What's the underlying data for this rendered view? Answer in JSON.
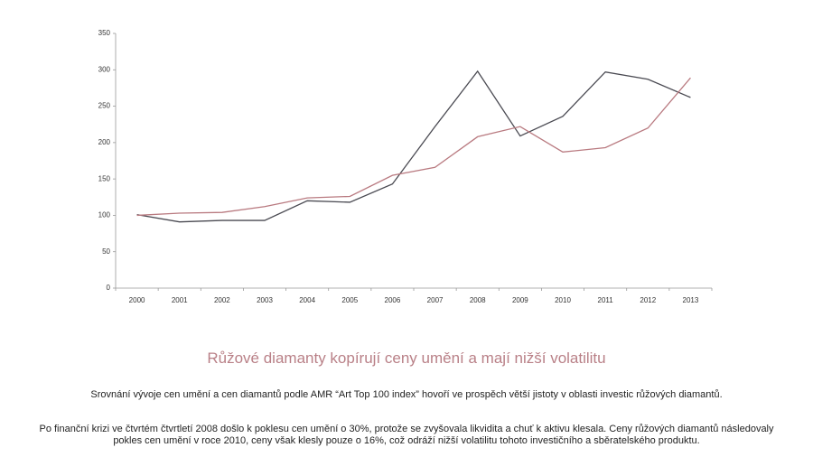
{
  "chart_data": {
    "type": "line",
    "title": "Růžové diamanty kopírují ceny umění a mají nižší volatilitu",
    "subtitle": "Srovnání vývoje cen umění a cen diamantů podle AMR “Art Top 100 index” hovoří ve prospěch větší jistoty v oblasti investic růžových diamantů.",
    "note": "Po finanční krizi ve čtvrtém čtvrtletí 2008 došlo k poklesu cen umění o 30%, protože se zvyšovala likvidita a chuť k aktivu klesala. Ceny růžových diamantů následovaly pokles cen umění v roce 2010, ceny však klesly pouze o 16%, což odráží nižší volatilitu tohoto investičního a sběratelského produktu.",
    "categories": [
      "2000",
      "2001",
      "2002",
      "2003",
      "2004",
      "2005",
      "2006",
      "2007",
      "2008",
      "2009",
      "2010",
      "2011",
      "2012",
      "2013"
    ],
    "series": [
      {
        "color": "#4a4a52",
        "values": [
          101,
          91,
          93,
          93,
          120,
          118,
          143,
          222,
          298,
          209,
          236,
          297,
          287,
          262
        ]
      },
      {
        "color": "#b97a80",
        "values": [
          100,
          103,
          104,
          112,
          124,
          126,
          155,
          166,
          208,
          222,
          187,
          193,
          220,
          289
        ]
      }
    ],
    "ylim": [
      0,
      350
    ],
    "yticks": [
      0,
      50,
      100,
      150,
      200,
      250,
      300,
      350
    ]
  }
}
